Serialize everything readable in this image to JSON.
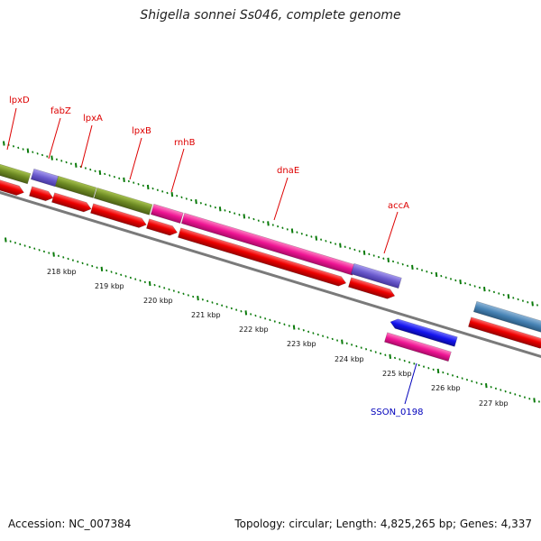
{
  "title": "Shigella sonnei Ss046, complete genome",
  "accession": "Accession: NC_007384",
  "summary": "Topology: circular; Length: 4,825,265 bp; Genes: 4,337",
  "colors": {
    "backbone": "#7a7a7a",
    "ticks": "#0a7a0a",
    "cds_red": "#ee0000",
    "olive": "#6e8b24",
    "purple": "#6a5acd",
    "magenta": "#ee1493",
    "blue": "#1414ee",
    "steelblue": "#4682b4",
    "label_red": "#dd0000",
    "label_blue": "#0000bb"
  },
  "kbp_labels": [
    "218 kbp",
    "219 kbp",
    "220 kbp",
    "221 kbp",
    "222 kbp",
    "223 kbp",
    "224 kbp",
    "225 kbp",
    "226 kbp",
    "227 kbp"
  ],
  "gene_labels": [
    "lpxD",
    "fabZ",
    "lpxA",
    "lpxB",
    "rnhB",
    "dnaE",
    "accA",
    "SSON_0198"
  ]
}
